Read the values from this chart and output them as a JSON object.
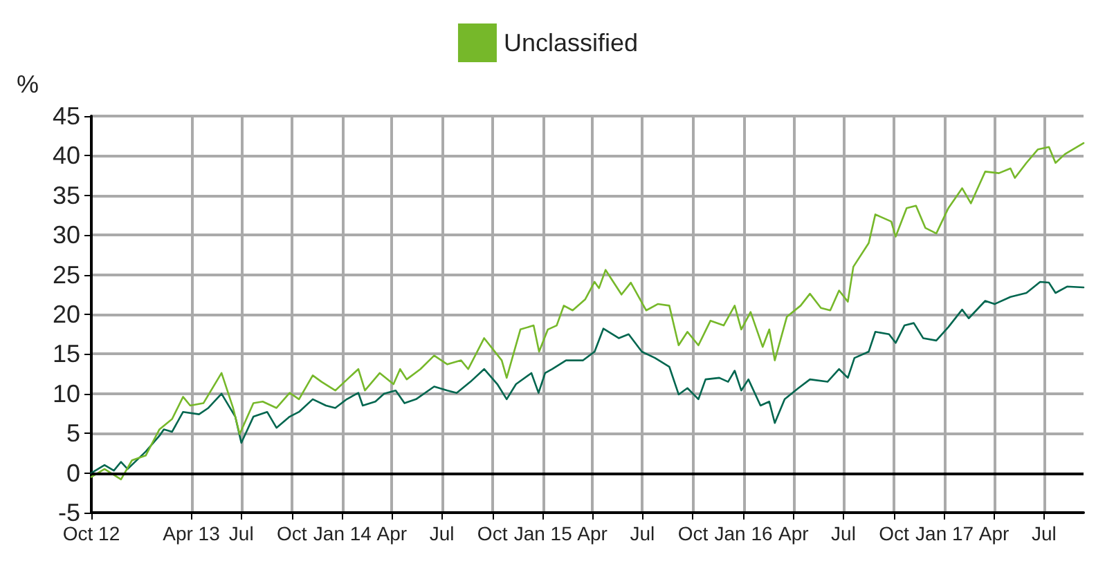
{
  "chart_data": {
    "type": "line",
    "ylabel": "%",
    "xlim": [
      "2012-10-01",
      "2017-09-11"
    ],
    "ylim": [
      -5,
      45
    ],
    "yticks": [
      -5,
      0,
      5,
      10,
      15,
      20,
      25,
      30,
      35,
      40,
      45
    ],
    "xticks": [
      {
        "value": "2012-10-01",
        "label": "Oct 12"
      },
      {
        "value": "2013-04-01",
        "label": "Apr 13"
      },
      {
        "value": "2013-07-01",
        "label": "Jul"
      },
      {
        "value": "2013-10-01",
        "label": "Oct"
      },
      {
        "value": "2014-01-01",
        "label": "Jan 14"
      },
      {
        "value": "2014-04-01",
        "label": "Apr"
      },
      {
        "value": "2014-07-01",
        "label": "Jul"
      },
      {
        "value": "2014-10-01",
        "label": "Oct"
      },
      {
        "value": "2015-01-01",
        "label": "Jan 15"
      },
      {
        "value": "2015-04-01",
        "label": "Apr"
      },
      {
        "value": "2015-07-01",
        "label": "Jul"
      },
      {
        "value": "2015-10-01",
        "label": "Oct"
      },
      {
        "value": "2016-01-01",
        "label": "Jan 16"
      },
      {
        "value": "2016-04-01",
        "label": "Apr"
      },
      {
        "value": "2016-07-01",
        "label": "Jul"
      },
      {
        "value": "2016-10-01",
        "label": "Oct"
      },
      {
        "value": "2017-01-01",
        "label": "Jan 17"
      },
      {
        "value": "2017-04-01",
        "label": "Apr"
      },
      {
        "value": "2017-07-01",
        "label": "Jul"
      }
    ],
    "grid": true,
    "legend": "top",
    "marker": "none",
    "line_style": "solid",
    "ref_lines": [
      {
        "axis": "y",
        "value": 0,
        "color": "#000000"
      }
    ],
    "series": [
      {
        "color": "#00664f",
        "x": [
          "2012-10-01",
          "2012-10-25",
          "2012-11-11",
          "2012-11-24",
          "2012-12-06",
          "2013-01-08",
          "2013-02-02",
          "2013-02-10",
          "2013-02-25",
          "2013-03-17",
          "2013-04-15",
          "2013-05-02",
          "2013-05-26",
          "2013-06-20",
          "2013-07-01",
          "2013-07-23",
          "2013-08-17",
          "2013-09-03",
          "2013-09-27",
          "2013-10-14",
          "2013-11-08",
          "2013-12-02",
          "2013-12-19",
          "2014-01-09",
          "2014-01-30",
          "2014-02-07",
          "2014-03-02",
          "2014-03-18",
          "2014-04-08",
          "2014-04-24",
          "2014-05-15",
          "2014-06-17",
          "2014-07-11",
          "2014-07-28",
          "2014-08-22",
          "2014-09-16",
          "2014-10-10",
          "2014-10-27",
          "2014-11-13",
          "2014-12-11",
          "2014-12-24",
          "2015-01-05",
          "2015-01-18",
          "2015-02-12",
          "2015-03-15",
          "2015-04-05",
          "2015-04-21",
          "2015-05-19",
          "2015-06-06",
          "2015-06-30",
          "2015-07-24",
          "2015-08-19",
          "2015-09-05",
          "2015-09-21",
          "2015-10-11",
          "2015-10-24",
          "2015-11-18",
          "2015-12-04",
          "2015-12-16",
          "2015-12-28",
          "2016-01-10",
          "2016-02-01",
          "2016-02-17",
          "2016-02-27",
          "2016-03-16",
          "2016-04-10",
          "2016-05-01",
          "2016-06-02",
          "2016-06-23",
          "2016-07-09",
          "2016-07-21",
          "2016-08-16",
          "2016-08-28",
          "2016-09-22",
          "2016-10-04",
          "2016-10-20",
          "2016-11-06",
          "2016-11-23",
          "2016-12-17",
          "2017-01-08",
          "2017-02-02",
          "2017-02-14",
          "2017-03-16",
          "2017-04-02",
          "2017-05-01",
          "2017-05-30",
          "2017-06-24",
          "2017-07-10",
          "2017-07-22",
          "2017-08-12",
          "2017-09-11"
        ],
        "values": [
          0,
          1.0,
          0.3,
          1.4,
          0.5,
          2.7,
          4.7,
          5.5,
          5.2,
          7.7,
          7.4,
          8.2,
          10.0,
          7.1,
          3.8,
          7.1,
          7.7,
          5.7,
          7.1,
          7.7,
          9.3,
          8.5,
          8.2,
          9.3,
          10.1,
          8.5,
          9.0,
          10.0,
          10.4,
          8.8,
          9.3,
          10.9,
          10.4,
          10.1,
          11.5,
          13.1,
          11.2,
          9.3,
          11.2,
          12.6,
          10.1,
          12.6,
          13.1,
          14.2,
          14.2,
          15.3,
          18.2,
          17.0,
          17.5,
          15.3,
          14.5,
          13.4,
          9.9,
          10.7,
          9.3,
          11.8,
          12.0,
          11.5,
          12.9,
          10.4,
          11.8,
          8.5,
          9.0,
          6.3,
          9.3,
          10.7,
          11.8,
          11.5,
          13.1,
          12.0,
          14.5,
          15.3,
          17.8,
          17.5,
          16.4,
          18.6,
          18.9,
          17.0,
          16.7,
          18.4,
          20.6,
          19.5,
          21.7,
          21.3,
          22.2,
          22.7,
          24.1,
          24.0,
          22.7,
          23.5,
          23.4
        ]
      },
      {
        "name": "Unclassified",
        "color": "#76b82a",
        "x": [
          "2012-10-01",
          "2012-10-25",
          "2012-11-24",
          "2012-12-14",
          "2013-01-08",
          "2013-02-02",
          "2013-02-25",
          "2013-03-17",
          "2013-03-30",
          "2013-04-23",
          "2013-05-26",
          "2013-06-16",
          "2013-06-28",
          "2013-07-23",
          "2013-08-09",
          "2013-09-03",
          "2013-09-27",
          "2013-10-14",
          "2013-11-08",
          "2013-11-24",
          "2013-12-19",
          "2014-01-05",
          "2014-01-30",
          "2014-02-11",
          "2014-03-10",
          "2014-04-04",
          "2014-04-16",
          "2014-04-28",
          "2014-05-23",
          "2014-06-17",
          "2014-07-11",
          "2014-08-05",
          "2014-08-18",
          "2014-09-16",
          "2014-10-18",
          "2014-10-27",
          "2014-11-21",
          "2014-12-15",
          "2014-12-25",
          "2015-01-10",
          "2015-01-26",
          "2015-02-08",
          "2015-02-24",
          "2015-03-19",
          "2015-04-05",
          "2015-04-13",
          "2015-04-25",
          "2015-05-24",
          "2015-06-10",
          "2015-07-08",
          "2015-07-29",
          "2015-08-19",
          "2015-09-05",
          "2015-09-21",
          "2015-10-11",
          "2015-11-02",
          "2015-11-26",
          "2015-12-16",
          "2015-12-28",
          "2016-01-14",
          "2016-02-05",
          "2016-02-17",
          "2016-02-27",
          "2016-03-20",
          "2016-04-14",
          "2016-05-01",
          "2016-05-21",
          "2016-06-07",
          "2016-06-23",
          "2016-07-09",
          "2016-07-19",
          "2016-08-16",
          "2016-08-28",
          "2016-09-26",
          "2016-10-04",
          "2016-10-24",
          "2016-11-10",
          "2016-11-27",
          "2016-12-17",
          "2017-01-08",
          "2017-02-02",
          "2017-02-18",
          "2017-03-16",
          "2017-04-10",
          "2017-05-01",
          "2017-05-09",
          "2017-05-30",
          "2017-06-20",
          "2017-07-10",
          "2017-07-22",
          "2017-08-08",
          "2017-09-11"
        ],
        "values": [
          -0.5,
          0.5,
          -0.8,
          1.6,
          2.2,
          5.5,
          6.8,
          9.6,
          8.5,
          8.8,
          12.6,
          8.2,
          4.9,
          8.8,
          9.0,
          8.2,
          10.1,
          9.3,
          12.3,
          11.5,
          10.4,
          11.5,
          13.1,
          10.4,
          12.6,
          11.2,
          13.1,
          11.8,
          13.1,
          14.8,
          13.7,
          14.2,
          13.1,
          17.0,
          14.2,
          12.0,
          18.1,
          18.6,
          15.3,
          18.1,
          18.6,
          21.1,
          20.5,
          21.9,
          24.1,
          23.3,
          25.6,
          22.5,
          24.0,
          20.5,
          21.3,
          21.1,
          16.1,
          17.8,
          16.1,
          19.2,
          18.6,
          21.1,
          18.1,
          20.3,
          15.9,
          18.1,
          14.2,
          19.7,
          21.1,
          22.6,
          20.8,
          20.5,
          23.0,
          21.6,
          26.0,
          29.0,
          32.6,
          31.7,
          29.8,
          33.4,
          33.7,
          30.9,
          30.2,
          33.4,
          35.9,
          34.0,
          38.0,
          37.8,
          38.4,
          37.2,
          39.1,
          40.8,
          41.1,
          39.1,
          40.2,
          41.6
        ]
      }
    ]
  }
}
